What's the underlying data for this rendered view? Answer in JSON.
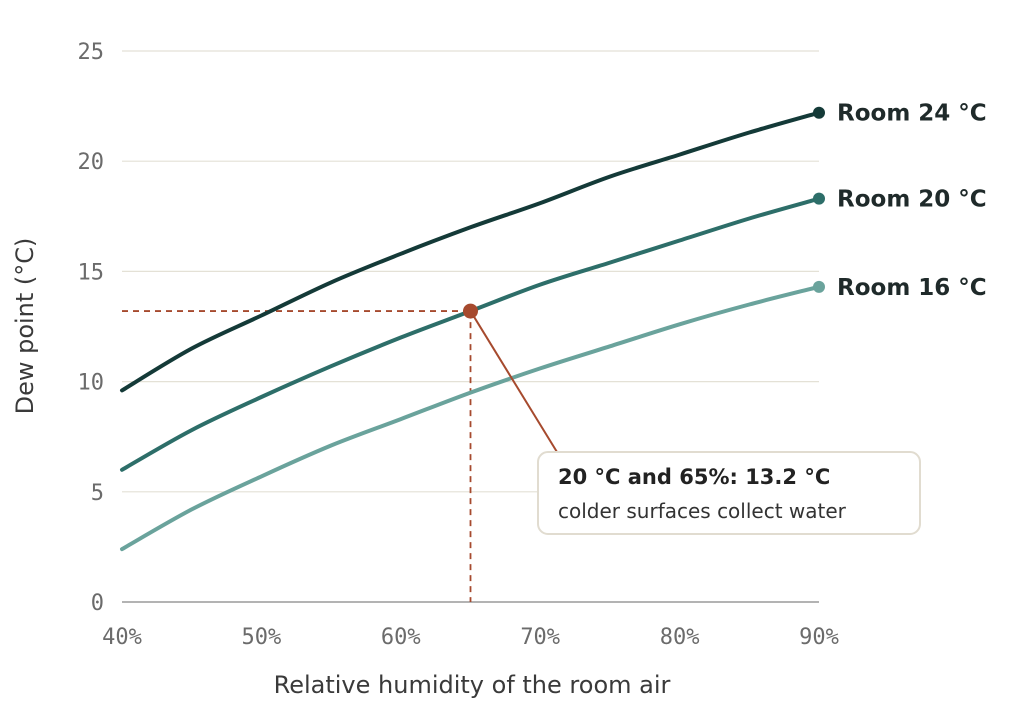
{
  "chart_data": {
    "type": "line",
    "xlabel": "Relative humidity of the room air",
    "ylabel": "Dew point (°C)",
    "xlim": [
      40,
      90
    ],
    "ylim": [
      0,
      25
    ],
    "x_ticks": [
      40,
      50,
      60,
      70,
      80,
      90
    ],
    "x_tick_labels": [
      "40%",
      "50%",
      "60%",
      "70%",
      "80%",
      "90%"
    ],
    "y_ticks": [
      0,
      5,
      10,
      15,
      20,
      25
    ],
    "y_tick_labels": [
      "0",
      "5",
      "10",
      "15",
      "20",
      "25"
    ],
    "grid": true,
    "x": [
      40,
      45,
      50,
      55,
      60,
      65,
      70,
      75,
      80,
      85,
      90
    ],
    "series": [
      {
        "name": "Room 24 °C",
        "color": "#143a38",
        "values": [
          9.6,
          11.5,
          13.0,
          14.5,
          15.8,
          17.0,
          18.1,
          19.3,
          20.3,
          21.3,
          22.2
        ]
      },
      {
        "name": "Room 20 °C",
        "color": "#2d6e69",
        "values": [
          6.0,
          7.8,
          9.3,
          10.7,
          12.0,
          13.2,
          14.4,
          15.4,
          16.4,
          17.4,
          18.3
        ]
      },
      {
        "name": "Room 16 °C",
        "color": "#6aa39c",
        "values": [
          2.4,
          4.2,
          5.7,
          7.1,
          8.3,
          9.5,
          10.6,
          11.6,
          12.6,
          13.5,
          14.3
        ]
      }
    ],
    "annotation": {
      "x": 65,
      "y": 13.2,
      "color": "#a64a2e",
      "title": "20 °C and 65%: 13.2 °C",
      "text": "colder surfaces collect water"
    }
  }
}
